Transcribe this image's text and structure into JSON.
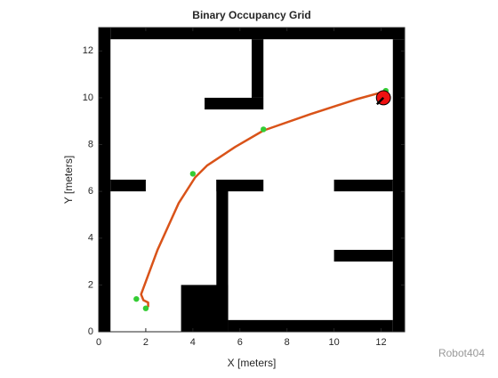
{
  "chart_data": {
    "type": "occupancy",
    "title": "Binary Occupancy Grid",
    "xlabel": "X [meters]",
    "ylabel": "Y [meters]",
    "xlim": [
      0,
      13
    ],
    "ylim": [
      0,
      13
    ],
    "xticks": [
      0,
      2,
      4,
      6,
      8,
      10,
      12
    ],
    "yticks": [
      0,
      2,
      4,
      6,
      8,
      10,
      12
    ],
    "obstacle_color": "#000000",
    "obstacles": [
      [
        0,
        0,
        0.5,
        13
      ],
      [
        0.5,
        12.5,
        13,
        13
      ],
      [
        12.5,
        0,
        13,
        12.5
      ],
      [
        5.5,
        0,
        12.5,
        0.5
      ],
      [
        3.5,
        0,
        5.5,
        2
      ],
      [
        6.5,
        10,
        7,
        12.5
      ],
      [
        4.5,
        9.5,
        7,
        10
      ],
      [
        0.5,
        6,
        2,
        6.5
      ],
      [
        5,
        0.5,
        5.5,
        6.5
      ],
      [
        5,
        6,
        7,
        6.5
      ],
      [
        10,
        6,
        12.5,
        6.5
      ],
      [
        10,
        3,
        12.5,
        3.5
      ]
    ],
    "series": [
      {
        "kind": "line",
        "color": "#d95319",
        "x": [
          2.1,
          2.1,
          1.9,
          1.8,
          2.5,
          3.4,
          4.1,
          4.6,
          5.8,
          7.0,
          9.0,
          11.0,
          12.1
        ],
        "y": [
          1.05,
          1.25,
          1.35,
          1.6,
          3.5,
          5.5,
          6.6,
          7.1,
          7.9,
          8.6,
          9.3,
          9.95,
          10.25
        ]
      },
      {
        "kind": "scatter",
        "color": "#33cc33",
        "x": [
          2.0,
          1.6,
          4.0,
          7.0,
          12.2
        ],
        "y": [
          1.0,
          1.4,
          6.75,
          8.65,
          10.3
        ]
      }
    ],
    "robot": {
      "x": 12.1,
      "y": 10.0,
      "radius": 0.3,
      "heading": 225,
      "color": "#ee1111"
    },
    "watermark": "Robot404"
  }
}
